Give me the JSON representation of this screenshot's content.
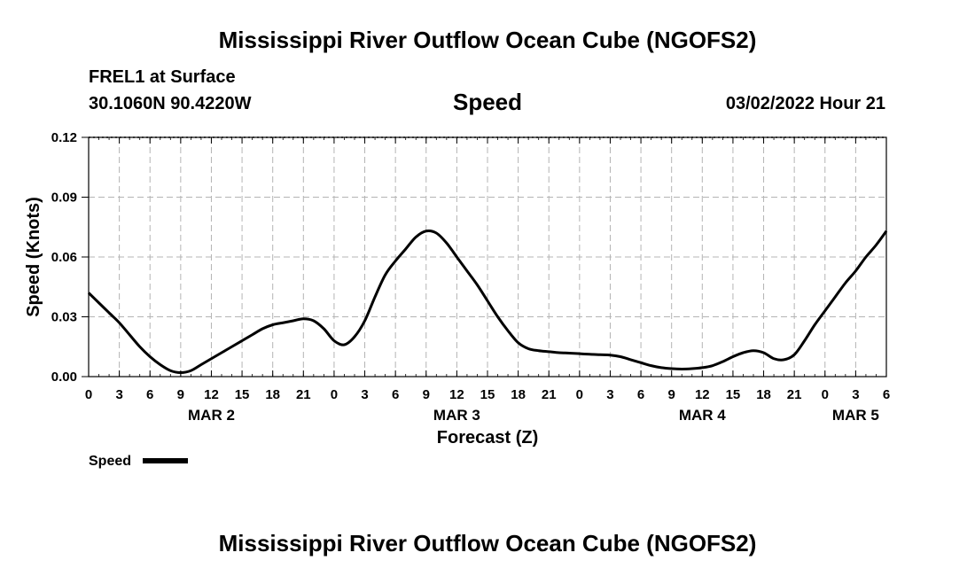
{
  "header": {
    "title": "Mississippi River Outflow Ocean Cube (NGOFS2)",
    "station": "FREL1 at Surface",
    "coords": "30.1060N  90.4220W",
    "variable": "Speed",
    "timestamp": "03/02/2022 Hour 21"
  },
  "footer": {
    "title": "Mississippi River Outflow Ocean Cube (NGOFS2)"
  },
  "chart_data": {
    "type": "line",
    "title": "Speed",
    "xlabel": "Forecast (Z)",
    "ylabel": "Speed (Knots)",
    "xlim": [
      0,
      78
    ],
    "ylim": [
      0,
      0.12
    ],
    "x_ticks": [
      0,
      3,
      6,
      9,
      12,
      15,
      18,
      21,
      24,
      27,
      30,
      33,
      36,
      39,
      42,
      45,
      48,
      51,
      54,
      57,
      60,
      63,
      66,
      69,
      72,
      75,
      78
    ],
    "x_tick_labels": [
      "0",
      "3",
      "6",
      "9",
      "12",
      "15",
      "18",
      "21",
      "0",
      "3",
      "6",
      "9",
      "12",
      "15",
      "18",
      "21",
      "0",
      "3",
      "6",
      "9",
      "12",
      "15",
      "18",
      "21",
      "0",
      "3",
      "6"
    ],
    "y_ticks": [
      0,
      0.03,
      0.06,
      0.09,
      0.12
    ],
    "y_tick_labels": [
      "0.00",
      "0.03",
      "0.06",
      "0.09",
      "0.12"
    ],
    "day_labels": [
      {
        "x": 12,
        "label": "MAR 2"
      },
      {
        "x": 36,
        "label": "MAR 3"
      },
      {
        "x": 60,
        "label": "MAR 4"
      },
      {
        "x": 75,
        "label": "MAR 5"
      }
    ],
    "grid": true,
    "legend": {
      "position": "bottom-left",
      "label": "Speed"
    },
    "series": [
      {
        "name": "Speed",
        "color": "#000000",
        "x": [
          0,
          1,
          2,
          3,
          4,
          5,
          6,
          7,
          8,
          9,
          10,
          11,
          12,
          13,
          14,
          15,
          16,
          17,
          18,
          19,
          20,
          21,
          22,
          23,
          24,
          25,
          26,
          27,
          28,
          29,
          30,
          31,
          32,
          33,
          34,
          35,
          36,
          37,
          38,
          39,
          40,
          41,
          42,
          43,
          44,
          45,
          46,
          47,
          48,
          49,
          50,
          51,
          52,
          53,
          54,
          55,
          56,
          57,
          58,
          59,
          60,
          61,
          62,
          63,
          64,
          65,
          66,
          67,
          68,
          69,
          70,
          71,
          72,
          73,
          74,
          75,
          76,
          77,
          78
        ],
        "values": [
          0.042,
          0.037,
          0.032,
          0.027,
          0.021,
          0.015,
          0.01,
          0.006,
          0.003,
          0.002,
          0.003,
          0.006,
          0.009,
          0.012,
          0.015,
          0.018,
          0.021,
          0.024,
          0.026,
          0.027,
          0.028,
          0.029,
          0.028,
          0.024,
          0.018,
          0.016,
          0.02,
          0.028,
          0.04,
          0.051,
          0.058,
          0.064,
          0.07,
          0.073,
          0.072,
          0.067,
          0.06,
          0.053,
          0.046,
          0.038,
          0.03,
          0.023,
          0.017,
          0.014,
          0.013,
          0.0125,
          0.012,
          0.0118,
          0.0115,
          0.0112,
          0.011,
          0.0108,
          0.01,
          0.0085,
          0.007,
          0.0055,
          0.0045,
          0.004,
          0.0038,
          0.004,
          0.0045,
          0.0055,
          0.0075,
          0.01,
          0.012,
          0.013,
          0.012,
          0.009,
          0.0085,
          0.011,
          0.018,
          0.026,
          0.033,
          0.04,
          0.047,
          0.053,
          0.06,
          0.066,
          0.073
        ]
      }
    ]
  }
}
